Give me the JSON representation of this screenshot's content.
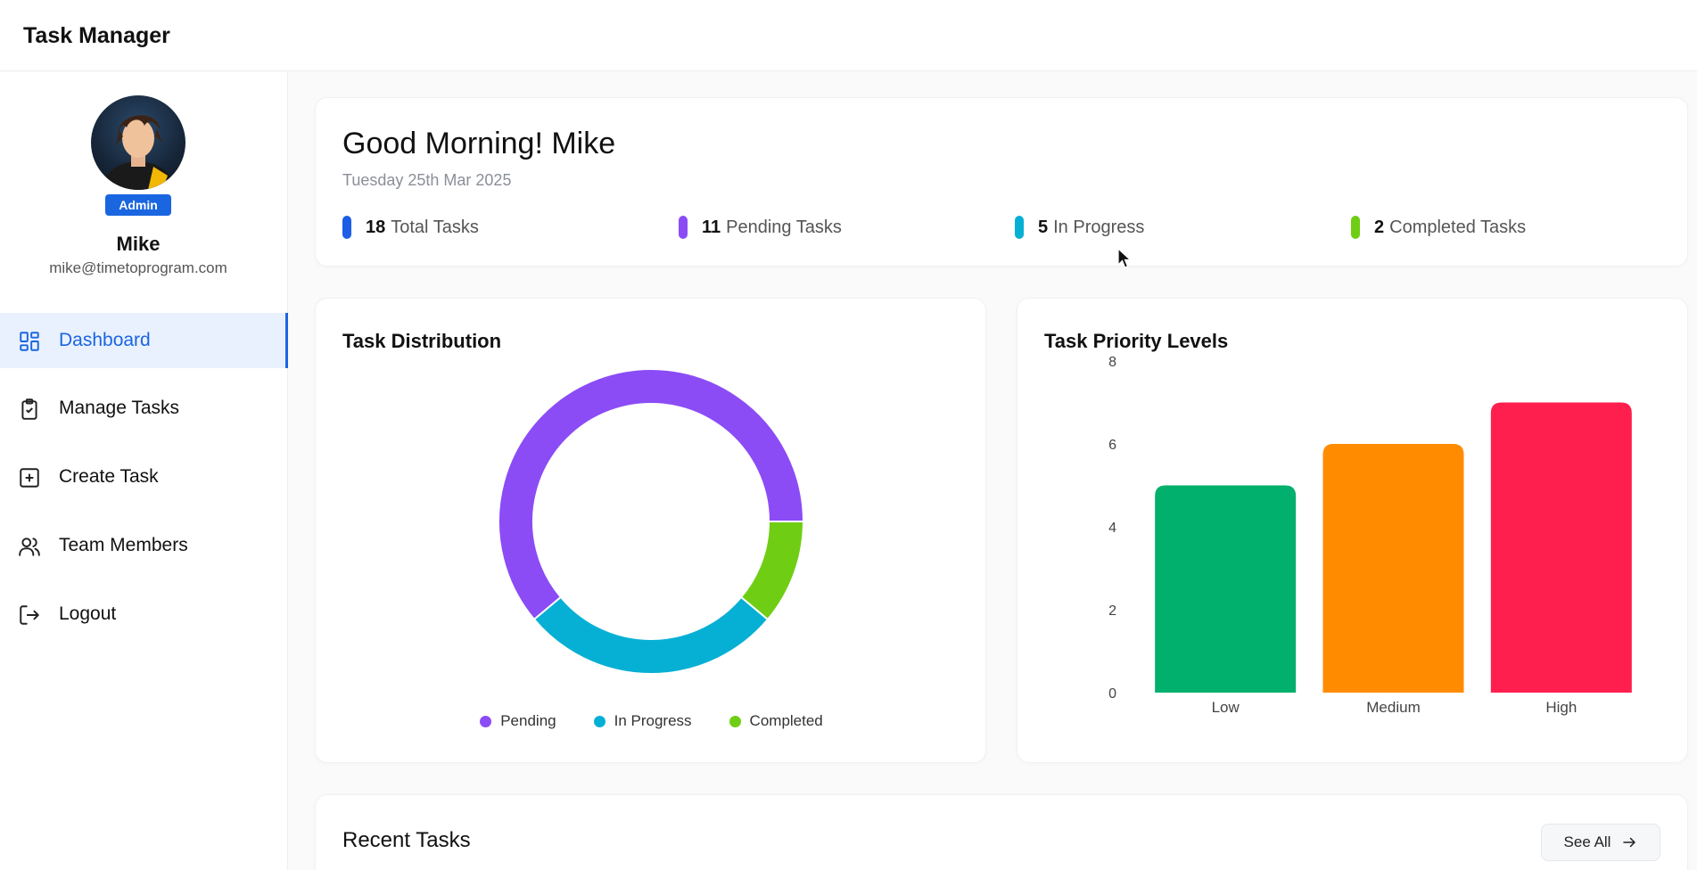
{
  "app": {
    "title": "Task Manager"
  },
  "user": {
    "name": "Mike",
    "email": "mike@timetoprogram.com",
    "role": "Admin"
  },
  "sidebar": {
    "items": [
      {
        "label": "Dashboard",
        "icon": "dashboard-icon",
        "active": true
      },
      {
        "label": "Manage Tasks",
        "icon": "clipboard-check-icon",
        "active": false
      },
      {
        "label": "Create Task",
        "icon": "plus-square-icon",
        "active": false
      },
      {
        "label": "Team Members",
        "icon": "users-icon",
        "active": false
      },
      {
        "label": "Logout",
        "icon": "logout-icon",
        "active": false
      }
    ]
  },
  "welcome": {
    "greeting": "Good Morning! Mike",
    "date": "Tuesday 25th Mar 2025",
    "stats": [
      {
        "value": "18",
        "label": "Total Tasks",
        "color": "#1e5ee6"
      },
      {
        "value": "11",
        "label": "Pending Tasks",
        "color": "#8b4cf6"
      },
      {
        "value": "5",
        "label": "In Progress",
        "color": "#06b0d4"
      },
      {
        "value": "2",
        "label": "Completed Tasks",
        "color": "#6fce14"
      }
    ]
  },
  "distribution": {
    "title": "Task Distribution"
  },
  "priority": {
    "title": "Task Priority Levels"
  },
  "recent": {
    "title": "Recent Tasks",
    "see_all": "See All"
  },
  "chart_data": [
    {
      "type": "pie",
      "variant": "donut",
      "title": "Task Distribution",
      "categories": [
        "Pending",
        "In Progress",
        "Completed"
      ],
      "values": [
        11,
        5,
        2
      ],
      "colors": [
        "#8b4cf6",
        "#06b0d4",
        "#6fce14"
      ],
      "legend": "bottom"
    },
    {
      "type": "bar",
      "title": "Task Priority Levels",
      "categories": [
        "Low",
        "Medium",
        "High"
      ],
      "values": [
        5,
        6,
        7
      ],
      "colors": [
        "#00b06c",
        "#ff8c00",
        "#ff1f4e"
      ],
      "yticks": [
        "0",
        "2",
        "4",
        "6",
        "8"
      ],
      "ylim": [
        0,
        8
      ],
      "grid": false
    }
  ]
}
